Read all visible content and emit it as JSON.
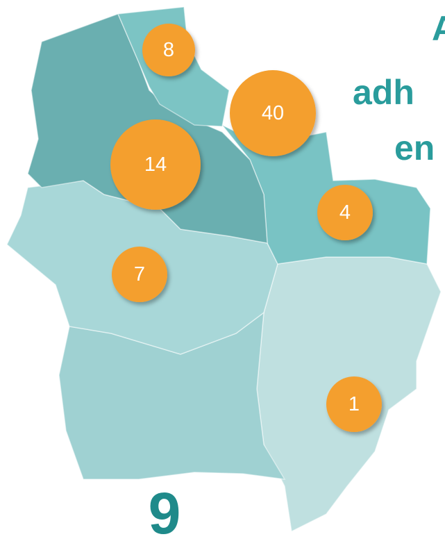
{
  "markers": [
    {
      "label": "8"
    },
    {
      "label": "40"
    },
    {
      "label": "14"
    },
    {
      "label": "4"
    },
    {
      "label": "7"
    },
    {
      "label": "1"
    }
  ],
  "texts": {
    "heading_top": "A",
    "heading_line1": "adh",
    "heading_line2": "en",
    "footer_number": "9"
  }
}
